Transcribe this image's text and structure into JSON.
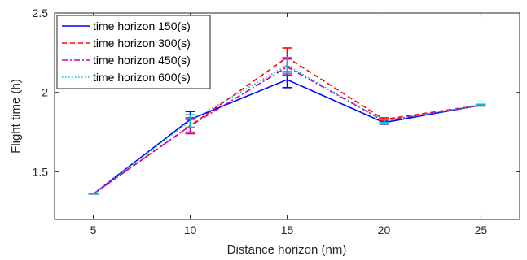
{
  "chart_data": {
    "type": "line",
    "title": "",
    "xlabel": "Distance horizon (nm)",
    "ylabel": "Flight time (h)",
    "x": [
      5,
      10,
      15,
      20,
      25
    ],
    "xlim": [
      3,
      27
    ],
    "ylim": [
      1.2,
      2.5
    ],
    "xticks": [
      "5",
      "10",
      "15",
      "20",
      "25"
    ],
    "yticks": [
      "1.5",
      "2",
      "2.5"
    ],
    "grid": false,
    "legend_position": "top-left",
    "series": [
      {
        "name": "time horizon 150(s)",
        "values": [
          1.36,
          1.83,
          2.08,
          1.81,
          1.92
        ],
        "errors": [
          0.0,
          0.05,
          0.05,
          0.01,
          0.005
        ],
        "color": "#0000ff",
        "style": "solid"
      },
      {
        "name": "time horizon 300(s)",
        "values": [
          1.36,
          1.79,
          2.22,
          1.83,
          1.92
        ],
        "errors": [
          0.0,
          0.04,
          0.06,
          0.01,
          0.005
        ],
        "color": "#ff0000",
        "style": "dashed"
      },
      {
        "name": "time horizon 450(s)",
        "values": [
          1.36,
          1.79,
          2.16,
          1.82,
          1.92
        ],
        "errors": [
          0.0,
          0.05,
          0.05,
          0.01,
          0.005
        ],
        "color": "#bf00bf",
        "style": "dashdot"
      },
      {
        "name": "time horizon 600(s)",
        "values": [
          1.36,
          1.82,
          2.17,
          1.82,
          1.92
        ],
        "errors": [
          0.0,
          0.04,
          0.05,
          0.01,
          0.005
        ],
        "color": "#00bfbf",
        "style": "dotted"
      }
    ]
  }
}
